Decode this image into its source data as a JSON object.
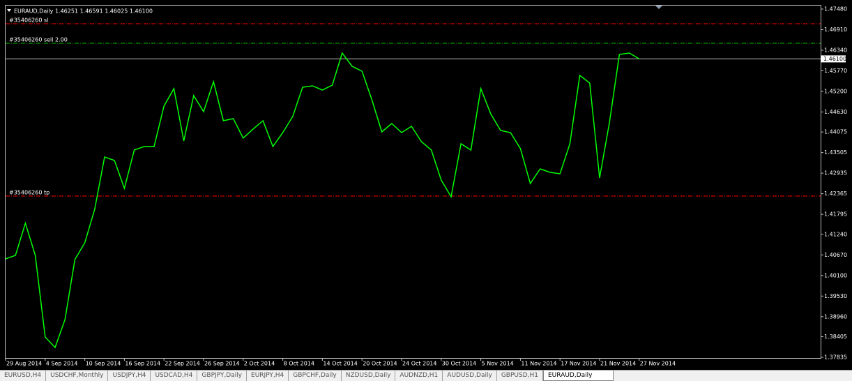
{
  "chart_data": {
    "type": "line",
    "header": "EURAUD,Daily  1.46251 1.46591 1.46025 1.46100",
    "categories": [
      "29 Aug 2014",
      null,
      null,
      null,
      "4 Sep 2014",
      null,
      null,
      null,
      "10 Sep 2014",
      null,
      null,
      null,
      "16 Sep 2014",
      null,
      null,
      null,
      "22 Sep 2014",
      null,
      null,
      null,
      "26 Sep 2014",
      null,
      null,
      null,
      "2 Oct 2014",
      null,
      null,
      null,
      "8 Oct 2014",
      null,
      null,
      null,
      "14 Oct 2014",
      null,
      null,
      null,
      "20 Oct 2014",
      null,
      null,
      null,
      "24 Oct 2014",
      null,
      null,
      null,
      "30 Oct 2014",
      null,
      null,
      null,
      "5 Nov 2014",
      null,
      null,
      null,
      "11 Nov 2014",
      null,
      null,
      null,
      "17 Nov 2014",
      null,
      null,
      null,
      "21 Nov 2014",
      null,
      null,
      null,
      "27 Nov 2014"
    ],
    "series": [
      {
        "name": "EURAUD,Daily",
        "color": "#00ff00",
        "values": [
          1.40561,
          1.40658,
          1.41547,
          1.40658,
          1.38396,
          1.38106,
          1.38879,
          1.40542,
          1.41005,
          1.41933,
          1.43383,
          1.43286,
          1.42513,
          1.43576,
          1.43673,
          1.43673,
          1.44794,
          1.45277,
          1.43827,
          1.45083,
          1.44639,
          1.4547,
          1.44388,
          1.44446,
          1.43905,
          1.44156,
          1.44388,
          1.43673,
          1.44059,
          1.44504,
          1.45315,
          1.45354,
          1.45238,
          1.45373,
          1.46262,
          1.45895,
          1.4576,
          1.44967,
          1.44078,
          1.4431,
          1.44059,
          1.44233,
          1.43808,
          1.43576,
          1.42745,
          1.42281,
          1.4375,
          1.43576,
          1.45277,
          1.44581,
          1.44117,
          1.44059,
          1.43615,
          1.42648,
          1.43054,
          1.42957,
          1.42919,
          1.4375,
          1.45644,
          1.45431,
          1.42803,
          1.44349,
          1.46224,
          1.46262,
          1.461
        ]
      }
    ],
    "ylim": [
      1.37835,
      1.4748
    ],
    "yticks": [
      {
        "value": 1.4748,
        "label": "1.47480"
      },
      {
        "value": 1.4691,
        "label": "1.46910"
      },
      {
        "value": 1.4634,
        "label": "1.46340"
      },
      {
        "value": 1.4577,
        "label": "1.45770"
      },
      {
        "value": 1.452,
        "label": "1.45200"
      },
      {
        "value": 1.4463,
        "label": "1.44630"
      },
      1.44075,
      1.43505,
      1.42935,
      1.42365,
      1.41795,
      {
        "value": 1.4124,
        "label": "1.41240"
      },
      {
        "value": 1.4067,
        "label": "1.40670"
      },
      {
        "value": 1.401,
        "label": "1.40100"
      },
      {
        "value": 1.3953,
        "label": "1.39530"
      },
      {
        "value": 1.3896,
        "label": "1.38960"
      },
      1.38405,
      1.37835
    ],
    "levels": [
      {
        "label": "#35406260 sl",
        "value": 1.47074,
        "color": "#ff0000"
      },
      {
        "label": "#35406260 sell 2.00",
        "value": 1.46533,
        "color": "#00c000"
      },
      {
        "label": "#35406260 tp",
        "value": 1.423,
        "color": "#ff0000"
      }
    ],
    "last_price": {
      "value": 1.461,
      "label": "1.46100",
      "color": "#c0c0c0"
    }
  },
  "tabs": [
    "EURUSD,H4",
    "USDCHF,Monthly",
    "USDJPY,H4",
    "USDCAD,H4",
    "GBPJPY,Daily",
    "EURJPY,H4",
    "GBPCHF,Daily",
    "NZDUSD,Daily",
    "AUDNZD,H1",
    "AUDUSD,Daily",
    "GBPUSD,H1",
    "EURAUD,Daily"
  ],
  "active_tab": 11
}
